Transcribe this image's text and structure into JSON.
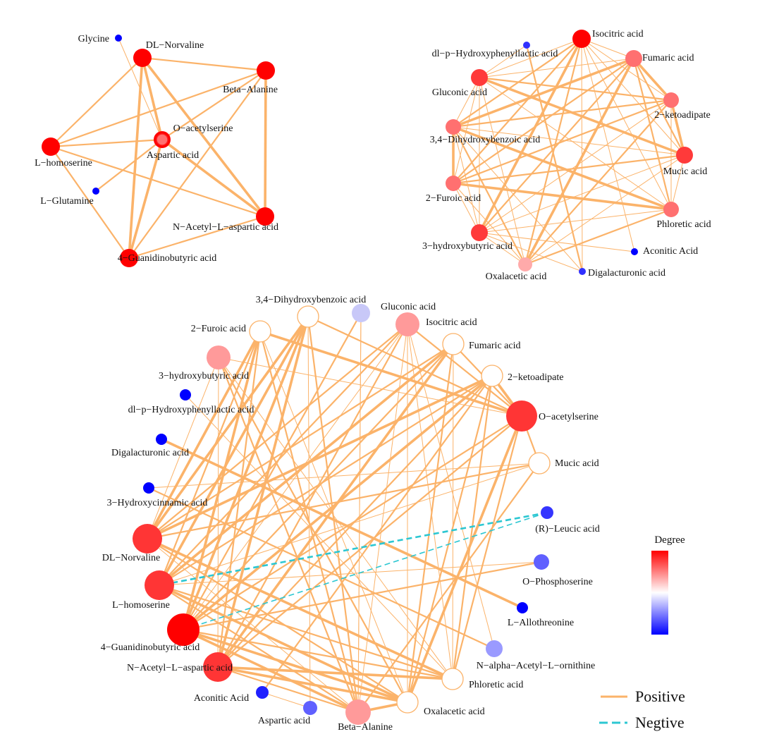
{
  "colors": {
    "positive": "#FBB36A",
    "negative": "#2CC7D2",
    "degree_high": "#FF0000",
    "degree_mid": "#FFFFFF",
    "degree_low": "#0000FF"
  },
  "networks": [
    {
      "nodes": [
        {
          "label": "Glycine",
          "color": "#0000FF"
        },
        {
          "label": "DL−Norvaline",
          "color": "#FF0000"
        },
        {
          "label": "Beta−Alanine",
          "color": "#FF0000"
        },
        {
          "label": "O−acetylserine",
          "color": "#FF0000"
        },
        {
          "label": "Aspartic acid",
          "color": "#FF7070"
        },
        {
          "label": "L−homoserine",
          "color": "#FF0000"
        },
        {
          "label": "L−Glutamine",
          "color": "#0000FF"
        },
        {
          "label": "N−Acetyl−L−aspartic acid",
          "color": "#FF0000"
        },
        {
          "label": "4−Guanidinobutyric acid",
          "color": "#FF0000"
        }
      ],
      "edges": [
        [
          1,
          2,
          2
        ],
        [
          1,
          5,
          2
        ],
        [
          1,
          8,
          3
        ],
        [
          1,
          3,
          3
        ],
        [
          1,
          7,
          3
        ],
        [
          0,
          3,
          1
        ],
        [
          2,
          5,
          2
        ],
        [
          2,
          3,
          2
        ],
        [
          2,
          7,
          3
        ],
        [
          2,
          8,
          2
        ],
        [
          5,
          3,
          2
        ],
        [
          5,
          7,
          2
        ],
        [
          5,
          8,
          2
        ],
        [
          6,
          3,
          2
        ],
        [
          3,
          8,
          3
        ],
        [
          3,
          7,
          3
        ],
        [
          8,
          7,
          2
        ]
      ]
    },
    {
      "nodes": [
        {
          "label": "Isocitric acid",
          "color": "#FF0000"
        },
        {
          "label": "dl−p−Hydroxyphenyllactic acid",
          "color": "#3030FF"
        },
        {
          "label": "Fumaric acid",
          "color": "#FF7070"
        },
        {
          "label": "Gluconic acid",
          "color": "#FF3A3A"
        },
        {
          "label": "2−ketoadipate",
          "color": "#FF7070"
        },
        {
          "label": "3,4−Dihydroxybenzoic acid",
          "color": "#FF7070"
        },
        {
          "label": "Mucic acid",
          "color": "#FF3A3A"
        },
        {
          "label": "2−Furoic acid",
          "color": "#FF7070"
        },
        {
          "label": "Phloretic acid",
          "color": "#FF7070"
        },
        {
          "label": "3−hydroxybutyric acid",
          "color": "#FF3A3A"
        },
        {
          "label": "Aconitic Acid",
          "color": "#0000FF"
        },
        {
          "label": "Oxalacetic acid",
          "color": "#FFAAAA"
        },
        {
          "label": "Digalacturonic acid",
          "color": "#3030FF"
        }
      ],
      "edges": [
        [
          0,
          2,
          1
        ],
        [
          0,
          3,
          1
        ],
        [
          0,
          4,
          1
        ],
        [
          0,
          5,
          2
        ],
        [
          0,
          6,
          1
        ],
        [
          0,
          7,
          2
        ],
        [
          0,
          8,
          1
        ],
        [
          0,
          9,
          3
        ],
        [
          0,
          11,
          2
        ],
        [
          2,
          3,
          1
        ],
        [
          2,
          4,
          3
        ],
        [
          2,
          5,
          3
        ],
        [
          2,
          6,
          2
        ],
        [
          2,
          7,
          2
        ],
        [
          2,
          8,
          2
        ],
        [
          2,
          9,
          2
        ],
        [
          2,
          11,
          3
        ],
        [
          3,
          4,
          2
        ],
        [
          3,
          5,
          1
        ],
        [
          3,
          6,
          3
        ],
        [
          3,
          7,
          1
        ],
        [
          3,
          8,
          1
        ],
        [
          3,
          9,
          1
        ],
        [
          3,
          11,
          1
        ],
        [
          4,
          5,
          2
        ],
        [
          4,
          6,
          3
        ],
        [
          4,
          7,
          2
        ],
        [
          4,
          8,
          1
        ],
        [
          4,
          9,
          1
        ],
        [
          4,
          11,
          2
        ],
        [
          5,
          6,
          1
        ],
        [
          5,
          7,
          3
        ],
        [
          5,
          8,
          3
        ],
        [
          5,
          9,
          1
        ],
        [
          5,
          11,
          2
        ],
        [
          6,
          7,
          2
        ],
        [
          6,
          8,
          1
        ],
        [
          6,
          9,
          1
        ],
        [
          6,
          11,
          1
        ],
        [
          7,
          8,
          3
        ],
        [
          7,
          9,
          1
        ],
        [
          7,
          11,
          1
        ],
        [
          8,
          9,
          1
        ],
        [
          8,
          11,
          2
        ],
        [
          9,
          11,
          1
        ],
        [
          1,
          3,
          1
        ],
        [
          1,
          12,
          2
        ],
        [
          10,
          0,
          1
        ],
        [
          10,
          9,
          1
        ],
        [
          12,
          0,
          1
        ],
        [
          12,
          5,
          1
        ],
        [
          12,
          9,
          1
        ]
      ]
    },
    {
      "nodes": [
        {
          "label": "3,4−Dihydroxybenzoic acid",
          "color": "#FFFFFF"
        },
        {
          "label": "Gluconic acid",
          "color": "#C8C8F8"
        },
        {
          "label": "Isocitric acid",
          "color": "#FF9A9A"
        },
        {
          "label": "2−Furoic acid",
          "color": "#FFFFFF"
        },
        {
          "label": "Fumaric acid",
          "color": "#FFFFFF"
        },
        {
          "label": "3−hydroxybutyric acid",
          "color": "#FF9A9A"
        },
        {
          "label": "2−ketoadipate",
          "color": "#FFFFFF"
        },
        {
          "label": "dl−p−Hydroxyphenyllactic acid",
          "color": "#0000FF"
        },
        {
          "label": "O−acetylserine",
          "color": "#FF3535"
        },
        {
          "label": "Digalacturonic acid",
          "color": "#0000FF"
        },
        {
          "label": "Mucic acid",
          "color": "#FFFFFF"
        },
        {
          "label": "3−Hydroxycinnamic acid",
          "color": "#0000FF"
        },
        {
          "label": "(R)−Leucic acid",
          "color": "#3535FF"
        },
        {
          "label": "DL−Norvaline",
          "color": "#FF3535"
        },
        {
          "label": "O−Phosphoserine",
          "color": "#6060FF"
        },
        {
          "label": "L−homoserine",
          "color": "#FF3535"
        },
        {
          "label": "L−Allothreonine",
          "color": "#0000FF"
        },
        {
          "label": "4−Guanidinobutyric acid",
          "color": "#FF0000"
        },
        {
          "label": "N−alpha−Acetyl−L−ornithine",
          "color": "#9A9AFF"
        },
        {
          "label": "N−Acetyl−L−aspartic acid",
          "color": "#FF3535"
        },
        {
          "label": "Phloretic acid",
          "color": "#FFFFFF"
        },
        {
          "label": "Aconitic Acid",
          "color": "#2020FF"
        },
        {
          "label": "Oxalacetic acid",
          "color": "#FFFFFF"
        },
        {
          "label": "Aspartic acid",
          "color": "#6060FF"
        },
        {
          "label": "Beta−Alanine",
          "color": "#FF9A9A"
        }
      ],
      "edges": [
        [
          13,
          0,
          3
        ],
        [
          13,
          3,
          3
        ],
        [
          13,
          4,
          2
        ],
        [
          13,
          6,
          3
        ],
        [
          13,
          2,
          2
        ],
        [
          13,
          10,
          2
        ],
        [
          13,
          20,
          3
        ],
        [
          13,
          22,
          2
        ],
        [
          13,
          24,
          1
        ],
        [
          13,
          5,
          1
        ],
        [
          15,
          0,
          3
        ],
        [
          15,
          3,
          2
        ],
        [
          15,
          4,
          3
        ],
        [
          15,
          6,
          2
        ],
        [
          15,
          2,
          2
        ],
        [
          15,
          20,
          2
        ],
        [
          15,
          22,
          3
        ],
        [
          15,
          24,
          2
        ],
        [
          15,
          10,
          1
        ],
        [
          17,
          0,
          3
        ],
        [
          17,
          3,
          3
        ],
        [
          17,
          4,
          2
        ],
        [
          17,
          6,
          3
        ],
        [
          17,
          2,
          1
        ],
        [
          17,
          1,
          2
        ],
        [
          17,
          22,
          3
        ],
        [
          17,
          20,
          2
        ],
        [
          17,
          24,
          3
        ],
        [
          17,
          8,
          2
        ],
        [
          19,
          0,
          3
        ],
        [
          19,
          3,
          2
        ],
        [
          19,
          2,
          2
        ],
        [
          19,
          4,
          3
        ],
        [
          19,
          5,
          1
        ],
        [
          19,
          22,
          3
        ],
        [
          19,
          20,
          3
        ],
        [
          19,
          24,
          2
        ],
        [
          19,
          6,
          2
        ],
        [
          19,
          8,
          2
        ],
        [
          8,
          0,
          2
        ],
        [
          8,
          3,
          3
        ],
        [
          8,
          2,
          2
        ],
        [
          8,
          4,
          2
        ],
        [
          8,
          6,
          3
        ],
        [
          8,
          10,
          2
        ],
        [
          8,
          5,
          1
        ],
        [
          8,
          22,
          3
        ],
        [
          8,
          20,
          2
        ],
        [
          24,
          0,
          2
        ],
        [
          24,
          3,
          2
        ],
        [
          24,
          1,
          1
        ],
        [
          24,
          2,
          1
        ],
        [
          24,
          5,
          2
        ],
        [
          24,
          10,
          2
        ],
        [
          24,
          22,
          3
        ],
        [
          22,
          2,
          1
        ],
        [
          22,
          4,
          2
        ],
        [
          22,
          6,
          2
        ],
        [
          22,
          5,
          2
        ],
        [
          22,
          3,
          1
        ],
        [
          20,
          4,
          1
        ],
        [
          20,
          6,
          2
        ],
        [
          20,
          5,
          1
        ],
        [
          20,
          2,
          1
        ],
        [
          7,
          20,
          1
        ],
        [
          9,
          16,
          3
        ],
        [
          11,
          18,
          2
        ],
        [
          21,
          23,
          1
        ],
        [
          21,
          6,
          2
        ],
        [
          23,
          0,
          1
        ],
        [
          14,
          15,
          1
        ],
        [
          14,
          17,
          2
        ],
        [
          18,
          2,
          1
        ],
        [
          10,
          11,
          1
        ],
        [
          1,
          24,
          1
        ]
      ],
      "negative_edges": [
        [
          12,
          15,
          2
        ],
        [
          12,
          17,
          1
        ]
      ]
    }
  ],
  "legend": {
    "degree_title": "Degree",
    "positive_label": "Positive",
    "negative_label": "Negtive"
  }
}
